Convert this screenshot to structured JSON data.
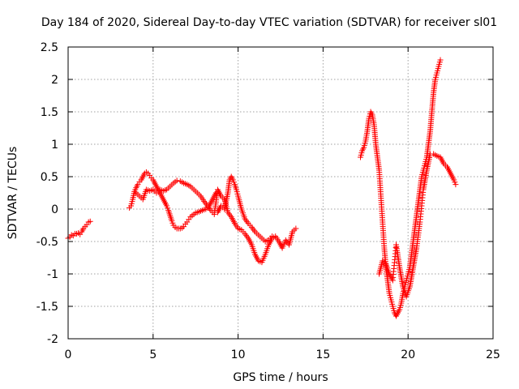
{
  "chart_data": {
    "type": "scatter",
    "title": "Day 184 of 2020, Sidereal Day-to-day VTEC variation (SDTVAR) for receiver sl01",
    "xlabel": "GPS time / hours",
    "ylabel": "SDTVAR / TECUs",
    "xlim": [
      0,
      25
    ],
    "ylim": [
      -2,
      2.5
    ],
    "xticks": [
      0,
      5,
      10,
      15,
      20,
      25
    ],
    "yticks": [
      -2,
      -1.5,
      -1,
      -0.5,
      0,
      0.5,
      1,
      1.5,
      2,
      2.5
    ],
    "xtick_labels": [
      "0",
      "5",
      "10",
      "15",
      "20",
      "25"
    ],
    "ytick_labels": [
      "-2",
      "-1.5",
      "-1",
      "-0.5",
      "0",
      "0.5",
      "1",
      "1.5",
      "2",
      "2.5"
    ],
    "grid": true,
    "marker": "plus",
    "color": "#ff0000",
    "series": [
      {
        "points": [
          [
            0.0,
            -0.45
          ],
          [
            0.1,
            -0.43
          ],
          [
            0.2,
            -0.4
          ],
          [
            0.3,
            -0.41
          ],
          [
            0.4,
            -0.38
          ],
          [
            0.5,
            -0.38
          ],
          [
            0.6,
            -0.37
          ],
          [
            0.7,
            -0.39
          ],
          [
            0.8,
            -0.35
          ],
          [
            0.9,
            -0.3
          ],
          [
            1.0,
            -0.27
          ],
          [
            1.1,
            -0.24
          ],
          [
            1.2,
            -0.2
          ],
          [
            1.3,
            -0.19
          ],
          [
            3.6,
            0.02
          ],
          [
            3.7,
            0.05
          ],
          [
            3.8,
            0.15
          ],
          [
            3.9,
            0.27
          ],
          [
            4.0,
            0.33
          ],
          [
            4.1,
            0.38
          ],
          [
            4.2,
            0.42
          ],
          [
            4.3,
            0.45
          ],
          [
            4.4,
            0.5
          ],
          [
            4.5,
            0.55
          ],
          [
            4.6,
            0.57
          ],
          [
            4.7,
            0.55
          ],
          [
            4.8,
            0.52
          ],
          [
            4.9,
            0.48
          ],
          [
            5.0,
            0.45
          ],
          [
            5.1,
            0.4
          ],
          [
            5.2,
            0.35
          ],
          [
            5.3,
            0.3
          ],
          [
            5.4,
            0.25
          ],
          [
            5.5,
            0.2
          ],
          [
            5.6,
            0.15
          ],
          [
            5.7,
            0.1
          ],
          [
            5.8,
            0.05
          ],
          [
            5.9,
            -0.02
          ],
          [
            6.0,
            -0.1
          ],
          [
            6.1,
            -0.18
          ],
          [
            6.2,
            -0.25
          ],
          [
            6.3,
            -0.28
          ],
          [
            6.4,
            -0.3
          ],
          [
            6.5,
            -0.3
          ],
          [
            6.6,
            -0.3
          ],
          [
            6.7,
            -0.29
          ],
          [
            6.8,
            -0.27
          ],
          [
            6.9,
            -0.23
          ],
          [
            7.0,
            -0.2
          ],
          [
            7.1,
            -0.16
          ],
          [
            7.2,
            -0.12
          ],
          [
            7.3,
            -0.1
          ],
          [
            7.4,
            -0.08
          ],
          [
            7.5,
            -0.06
          ],
          [
            7.6,
            -0.05
          ],
          [
            7.7,
            -0.04
          ],
          [
            7.8,
            -0.03
          ],
          [
            7.9,
            -0.02
          ],
          [
            8.0,
            -0.01
          ],
          [
            8.1,
            0.0
          ],
          [
            8.2,
            0.02
          ],
          [
            8.3,
            0.05
          ],
          [
            8.4,
            0.1
          ],
          [
            8.5,
            0.15
          ],
          [
            8.6,
            0.2
          ],
          [
            8.7,
            0.25
          ],
          [
            4.0,
            0.25
          ],
          [
            4.2,
            0.2
          ],
          [
            4.4,
            0.15
          ],
          [
            4.6,
            0.3
          ],
          [
            4.8,
            0.28
          ],
          [
            5.0,
            0.3
          ],
          [
            5.2,
            0.25
          ],
          [
            5.4,
            0.3
          ],
          [
            5.6,
            0.28
          ],
          [
            5.8,
            0.3
          ],
          [
            6.0,
            0.35
          ],
          [
            6.2,
            0.4
          ],
          [
            6.4,
            0.44
          ],
          [
            6.6,
            0.43
          ],
          [
            6.8,
            0.4
          ],
          [
            7.0,
            0.38
          ],
          [
            7.2,
            0.35
          ],
          [
            7.4,
            0.3
          ],
          [
            7.6,
            0.25
          ],
          [
            7.8,
            0.2
          ],
          [
            8.0,
            0.12
          ],
          [
            8.2,
            0.05
          ],
          [
            8.4,
            -0.02
          ],
          [
            8.6,
            -0.08
          ],
          [
            8.8,
            0.3
          ],
          [
            9.0,
            0.2
          ],
          [
            9.2,
            0.15
          ],
          [
            9.4,
            -0.05
          ],
          [
            9.6,
            -0.12
          ],
          [
            9.8,
            -0.22
          ],
          [
            10.0,
            -0.3
          ],
          [
            10.2,
            -0.32
          ],
          [
            10.4,
            -0.38
          ],
          [
            10.6,
            -0.45
          ],
          [
            10.8,
            -0.55
          ],
          [
            11.0,
            -0.7
          ],
          [
            11.2,
            -0.8
          ],
          [
            11.4,
            -0.82
          ],
          [
            11.6,
            -0.7
          ],
          [
            11.8,
            -0.55
          ],
          [
            12.0,
            -0.45
          ],
          [
            12.2,
            -0.42
          ],
          [
            12.4,
            -0.5
          ],
          [
            12.6,
            -0.6
          ],
          [
            12.8,
            -0.48
          ],
          [
            13.0,
            -0.55
          ],
          [
            13.2,
            -0.35
          ],
          [
            13.4,
            -0.3
          ],
          [
            8.8,
            -0.05
          ],
          [
            9.0,
            0.05
          ],
          [
            9.2,
            0.0
          ],
          [
            9.4,
            0.25
          ],
          [
            9.5,
            0.45
          ],
          [
            9.6,
            0.5
          ],
          [
            9.7,
            0.45
          ],
          [
            9.8,
            0.38
          ],
          [
            9.9,
            0.3
          ],
          [
            10.0,
            0.2
          ],
          [
            10.2,
            0.0
          ],
          [
            10.4,
            -0.15
          ],
          [
            10.6,
            -0.22
          ],
          [
            10.8,
            -0.28
          ],
          [
            11.0,
            -0.35
          ],
          [
            11.2,
            -0.4
          ],
          [
            11.4,
            -0.45
          ],
          [
            11.6,
            -0.5
          ],
          [
            11.8,
            -0.48
          ],
          [
            12.0,
            -0.42
          ],
          [
            17.2,
            0.8
          ],
          [
            17.3,
            0.9
          ],
          [
            17.4,
            0.95
          ],
          [
            17.5,
            1.05
          ],
          [
            17.6,
            1.2
          ],
          [
            17.7,
            1.4
          ],
          [
            17.8,
            1.5
          ],
          [
            17.9,
            1.45
          ],
          [
            18.0,
            1.3
          ],
          [
            18.1,
            1.0
          ],
          [
            18.2,
            0.8
          ],
          [
            18.3,
            0.6
          ],
          [
            18.4,
            0.2
          ],
          [
            18.5,
            -0.2
          ],
          [
            18.6,
            -0.6
          ],
          [
            18.7,
            -0.9
          ],
          [
            18.8,
            -1.1
          ],
          [
            18.9,
            -1.3
          ],
          [
            19.0,
            -1.4
          ],
          [
            19.1,
            -1.5
          ],
          [
            19.2,
            -1.6
          ],
          [
            19.3,
            -1.65
          ],
          [
            19.4,
            -1.6
          ],
          [
            19.5,
            -1.55
          ],
          [
            19.6,
            -1.45
          ],
          [
            19.7,
            -1.3
          ],
          [
            19.8,
            -1.2
          ],
          [
            19.9,
            -1.1
          ],
          [
            20.0,
            -1.0
          ],
          [
            20.1,
            -0.9
          ],
          [
            20.2,
            -0.7
          ],
          [
            20.3,
            -0.5
          ],
          [
            20.4,
            -0.3
          ],
          [
            20.5,
            -0.1
          ],
          [
            20.6,
            0.1
          ],
          [
            20.7,
            0.3
          ],
          [
            20.8,
            0.5
          ],
          [
            20.9,
            0.6
          ],
          [
            21.0,
            0.7
          ],
          [
            21.1,
            0.8
          ],
          [
            21.2,
            1.0
          ],
          [
            21.3,
            1.2
          ],
          [
            21.4,
            1.5
          ],
          [
            21.5,
            1.8
          ],
          [
            21.6,
            2.0
          ],
          [
            21.7,
            2.1
          ],
          [
            21.8,
            2.2
          ],
          [
            21.9,
            2.3
          ],
          [
            18.3,
            -1.0
          ],
          [
            18.5,
            -0.8
          ],
          [
            18.7,
            -0.85
          ],
          [
            18.9,
            -1.0
          ],
          [
            19.1,
            -1.1
          ],
          [
            19.3,
            -0.55
          ],
          [
            19.5,
            -0.9
          ],
          [
            19.7,
            -1.2
          ],
          [
            19.9,
            -1.35
          ],
          [
            20.1,
            -1.2
          ],
          [
            20.3,
            -0.9
          ],
          [
            20.5,
            -0.6
          ],
          [
            20.7,
            -0.2
          ],
          [
            20.9,
            0.3
          ],
          [
            21.1,
            0.6
          ],
          [
            21.3,
            0.85
          ],
          [
            21.5,
            0.85
          ],
          [
            21.7,
            0.82
          ],
          [
            21.9,
            0.8
          ],
          [
            22.1,
            0.7
          ],
          [
            22.3,
            0.65
          ],
          [
            22.5,
            0.55
          ],
          [
            22.7,
            0.45
          ],
          [
            22.8,
            0.38
          ]
        ]
      }
    ]
  }
}
